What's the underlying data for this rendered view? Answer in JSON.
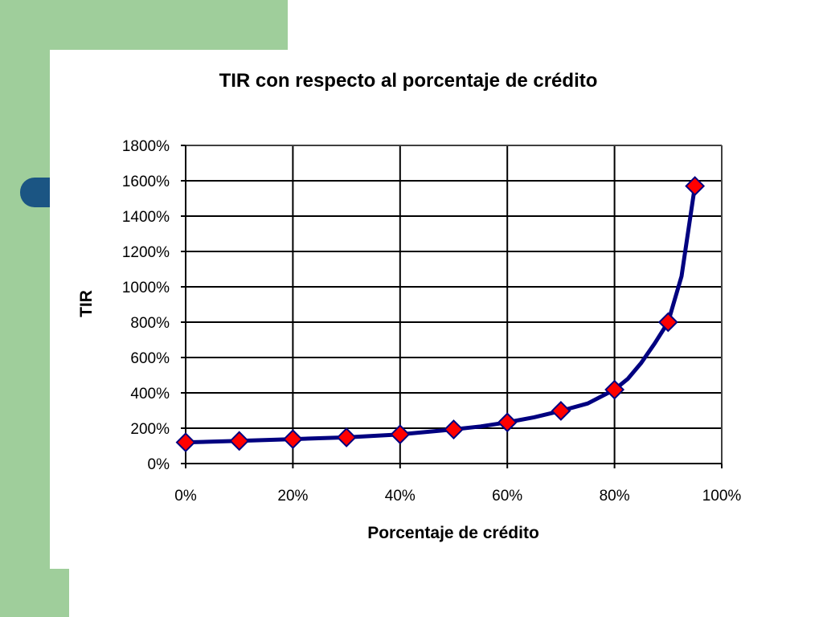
{
  "colors": {
    "background_band": "#9fce9b",
    "accent": "#1b5583",
    "line": "#000080",
    "marker_fill": "#ff0000",
    "marker_stroke": "#000080"
  },
  "chart_data": {
    "type": "line",
    "title": "TIR con respecto al porcentaje de crédito",
    "xlabel": "Porcentaje de crédito",
    "ylabel": "TIR",
    "xlim": [
      0,
      100
    ],
    "ylim": [
      0,
      1800
    ],
    "x_ticks": [
      "0%",
      "20%",
      "40%",
      "60%",
      "80%",
      "100%"
    ],
    "y_ticks": [
      "0%",
      "200%",
      "400%",
      "600%",
      "800%",
      "1000%",
      "1200%",
      "1400%",
      "1600%",
      "1800%"
    ],
    "grid": true,
    "legend": "none",
    "series": [
      {
        "marker": "diamond",
        "line_x": [
          0,
          10,
          20,
          30,
          40,
          50,
          55,
          60,
          65,
          70,
          75,
          80,
          82.5,
          85,
          87.5,
          90,
          92.5,
          95
        ],
        "line_y": [
          120,
          128,
          138,
          148,
          165,
          193,
          210,
          233,
          262,
          298,
          340,
          418,
          480,
          570,
          680,
          800,
          1060,
          1570
        ],
        "points_x": [
          0,
          10,
          20,
          30,
          40,
          50,
          60,
          70,
          80,
          90,
          95
        ],
        "points_y": [
          120,
          128,
          138,
          148,
          165,
          193,
          233,
          298,
          418,
          800,
          1570
        ]
      }
    ]
  }
}
